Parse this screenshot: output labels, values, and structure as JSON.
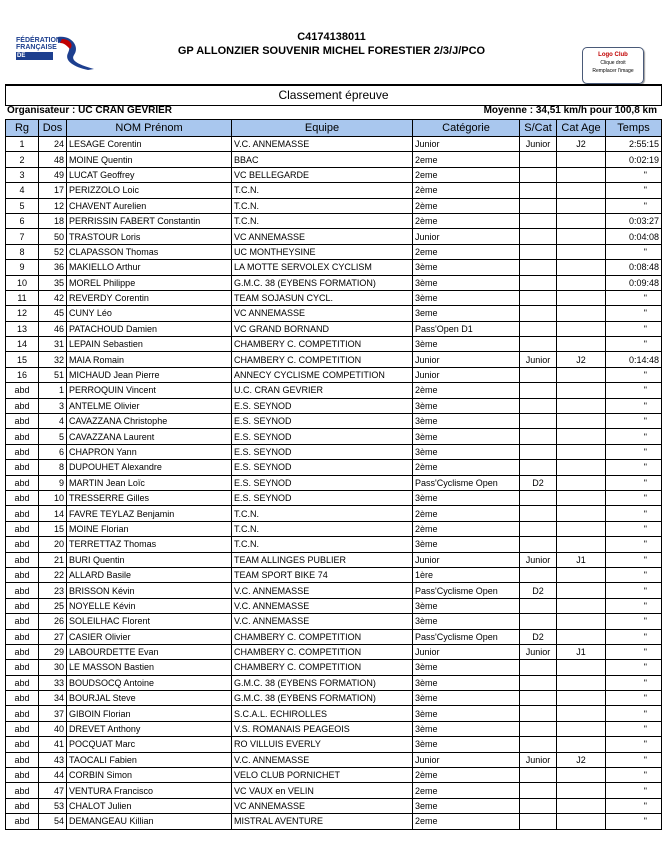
{
  "header": {
    "logo_text": [
      "FÉDÉRATION",
      "FRANÇAISE",
      "DE CYCLISME"
    ],
    "code": "C4174138011",
    "race": "GP ALLONZIER SOUVENIR MICHEL FORESTIER 2/3/J/PCO",
    "club_logo": {
      "title": "Logo Club",
      "line1": "Clique droit",
      "line2": "Remplacer l'image"
    },
    "section_title": "Classement épreuve",
    "organisateur": "Organisateur : UC CRAN GEVRIER",
    "moyenne": "Moyenne : 34,51 km/h pour 100,8 km"
  },
  "colors": {
    "header_bg": "#a9c7ee",
    "logo_blue": "#1d3f8f",
    "logo_red": "#c00000"
  },
  "table": {
    "columns": [
      "Rg",
      "Dos",
      "NOM Prénom",
      "Equipe",
      "Catégorie",
      "S/Cat",
      "Cat Age",
      "Temps"
    ],
    "rows": [
      [
        "1",
        "24",
        "LESAGE Corentin",
        "V.C. ANNEMASSE",
        "Junior",
        "Junior",
        "J2",
        "2:55:15"
      ],
      [
        "2",
        "48",
        "MOINE  Quentin",
        "BBAC",
        "2eme",
        "",
        "",
        "0:02:19"
      ],
      [
        "3",
        "49",
        "LUCAT Geoffrey",
        "VC BELLEGARDE",
        "2eme",
        "",
        "",
        "\""
      ],
      [
        "4",
        "17",
        "PERIZZOLO Loic",
        "T.C.N.",
        "2ème",
        "",
        "",
        "\""
      ],
      [
        "5",
        "12",
        "CHAVENT Aurelien",
        "T.C.N.",
        "2ème",
        "",
        "",
        "\""
      ],
      [
        "6",
        "18",
        "PERRISSIN FABERT Constantin",
        "T.C.N.",
        "2ème",
        "",
        "",
        "0:03:27"
      ],
      [
        "7",
        "50",
        "TRASTOUR Loris",
        "VC ANNEMASSE",
        "Junior",
        "",
        "",
        "0:04:08"
      ],
      [
        "8",
        "52",
        "CLAPASSON Thomas",
        "UC MONTHEYSINE",
        "2eme",
        "",
        "",
        "\""
      ],
      [
        "9",
        "36",
        "MAKIELLO Arthur",
        "LA MOTTE SERVOLEX CYCLISM",
        "3ème",
        "",
        "",
        "0:08:48"
      ],
      [
        "10",
        "35",
        "MOREL Philippe",
        "G.M.C. 38 (EYBENS FORMATION)",
        "3ème",
        "",
        "",
        "0:09:48"
      ],
      [
        "11",
        "42",
        "REVERDY Corentin",
        "TEAM SOJASUN CYCL.",
        "3ème",
        "",
        "",
        "\""
      ],
      [
        "12",
        "45",
        "CUNY Léo",
        "VC ANNEMASSE",
        "3eme",
        "",
        "",
        "\""
      ],
      [
        "13",
        "46",
        "PATACHOUD  Damien",
        "VC GRAND BORNAND",
        "Pass'Open D1",
        "",
        "",
        "\""
      ],
      [
        "14",
        "31",
        "LEPAIN Sebastien",
        "CHAMBERY C. COMPETITION",
        "3ème",
        "",
        "",
        "\""
      ],
      [
        "15",
        "32",
        "MAIA Romain",
        "CHAMBERY C. COMPETITION",
        "Junior",
        "Junior",
        "J2",
        "0:14:48"
      ],
      [
        "16",
        "51",
        "MICHAUD Jean Pierre",
        "ANNECY CYCLISME COMPETITION",
        "Junior",
        "",
        "",
        "\""
      ],
      [
        "abd",
        "1",
        "PERROQUIN Vincent",
        "U.C. CRAN GEVRIER",
        "2ème",
        "",
        "",
        "\""
      ],
      [
        "abd",
        "3",
        "ANTELME Olivier",
        "E.S. SEYNOD",
        "3ème",
        "",
        "",
        "\""
      ],
      [
        "abd",
        "4",
        "CAVAZZANA Christophe",
        "E.S. SEYNOD",
        "3ème",
        "",
        "",
        "\""
      ],
      [
        "abd",
        "5",
        "CAVAZZANA Laurent",
        "E.S. SEYNOD",
        "3ème",
        "",
        "",
        "\""
      ],
      [
        "abd",
        "6",
        "CHAPRON Yann",
        "E.S. SEYNOD",
        "3ème",
        "",
        "",
        "\""
      ],
      [
        "abd",
        "8",
        "DUPOUHET Alexandre",
        "E.S. SEYNOD",
        "2ème",
        "",
        "",
        "\""
      ],
      [
        "abd",
        "9",
        "MARTIN Jean Loïc",
        "E.S. SEYNOD",
        "Pass'Cyclisme Open",
        "D2",
        "",
        "\""
      ],
      [
        "abd",
        "10",
        "TRESSERRE Gilles",
        "E.S. SEYNOD",
        "3ème",
        "",
        "",
        "\""
      ],
      [
        "abd",
        "14",
        "FAVRE TEYLAZ Benjamin",
        "T.C.N.",
        "2ème",
        "",
        "",
        "\""
      ],
      [
        "abd",
        "15",
        "MOINE Florian",
        "T.C.N.",
        "2ème",
        "",
        "",
        "\""
      ],
      [
        "abd",
        "20",
        "TERRETTAZ Thomas",
        "T.C.N.",
        "3ème",
        "",
        "",
        "\""
      ],
      [
        "abd",
        "21",
        "BURI Quentin",
        "TEAM ALLINGES PUBLIER",
        "Junior",
        "Junior",
        "J1",
        "\""
      ],
      [
        "abd",
        "22",
        "ALLARD Basile",
        "TEAM SPORT BIKE 74",
        "1ère",
        "",
        "",
        "\""
      ],
      [
        "abd",
        "23",
        "BRISSON Kévin",
        "V.C. ANNEMASSE",
        "Pass'Cyclisme Open",
        "D2",
        "",
        "\""
      ],
      [
        "abd",
        "25",
        "NOYELLE Kévin",
        "V.C. ANNEMASSE",
        "3ème",
        "",
        "",
        "\""
      ],
      [
        "abd",
        "26",
        "SOLEILHAC Florent",
        "V.C. ANNEMASSE",
        "3ème",
        "",
        "",
        "\""
      ],
      [
        "abd",
        "27",
        "CASIER Olivier",
        "CHAMBERY C. COMPETITION",
        "Pass'Cyclisme Open",
        "D2",
        "",
        "\""
      ],
      [
        "abd",
        "29",
        "LABOURDETTE Evan",
        "CHAMBERY C. COMPETITION",
        "Junior",
        "Junior",
        "J1",
        "\""
      ],
      [
        "abd",
        "30",
        "LE MASSON Bastien",
        "CHAMBERY C. COMPETITION",
        "3ème",
        "",
        "",
        "\""
      ],
      [
        "abd",
        "33",
        "BOUDSOCQ Antoine",
        "G.M.C. 38 (EYBENS FORMATION)",
        "3ème",
        "",
        "",
        "\""
      ],
      [
        "abd",
        "34",
        "BOURJAL Steve",
        "G.M.C. 38 (EYBENS FORMATION)",
        "3ème",
        "",
        "",
        "\""
      ],
      [
        "abd",
        "37",
        "GIBOIN Florian",
        "S.C.A.L. ECHIROLLES",
        "3ème",
        "",
        "",
        "\""
      ],
      [
        "abd",
        "40",
        "DREVET Anthony",
        "V.S. ROMANAIS PEAGEOIS",
        "3ème",
        "",
        "",
        "\""
      ],
      [
        "abd",
        "41",
        "POCQUAT Marc",
        "RO VILLUIS EVERLY",
        "3ème",
        "",
        "",
        "\""
      ],
      [
        "abd",
        "43",
        "TAOCALI Fabien",
        "V.C. ANNEMASSE",
        "Junior",
        "Junior",
        "J2",
        "\""
      ],
      [
        "abd",
        "44",
        "CORBIN Simon",
        "VELO CLUB PORNICHET",
        "2ème",
        "",
        "",
        "\""
      ],
      [
        "abd",
        "47",
        "VENTURA Francisco",
        "VC VAUX en VELIN",
        "2eme",
        "",
        "",
        "\""
      ],
      [
        "abd",
        "53",
        "CHALOT Julien",
        "VC ANNEMASSE",
        "3eme",
        "",
        "",
        "\""
      ],
      [
        "abd",
        "54",
        "DEMANGEAU Killian",
        "MISTRAL AVENTURE",
        "2eme",
        "",
        "",
        "\""
      ]
    ]
  }
}
